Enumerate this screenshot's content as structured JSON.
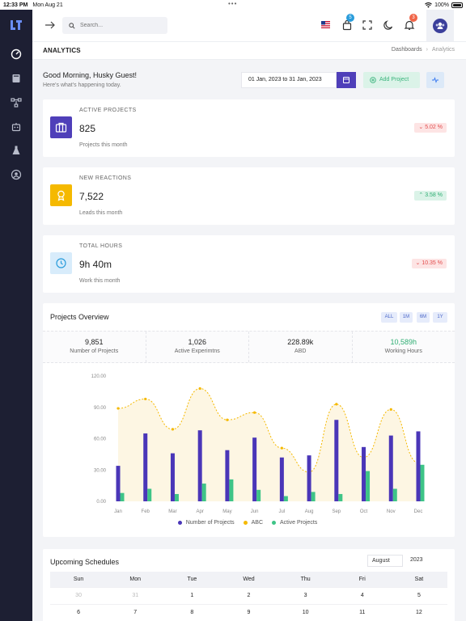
{
  "status_bar": {
    "time": "12:33 PM",
    "date": "Mon Aug 21",
    "battery": "100%"
  },
  "topbar": {
    "search_placeholder": "Search...",
    "cart_badge": "5",
    "notification_badge": "3"
  },
  "page_header": {
    "title": "ANALYTICS",
    "breadcrumb": [
      "Dashboards",
      "Analytics"
    ]
  },
  "greeting": {
    "title": "Good Morning, Husky Guest!",
    "subtitle": "Here's what's happening today.",
    "date_range": "01 Jan, 2023 to 31 Jan, 2023",
    "add_project_label": "Add Project"
  },
  "stats": [
    {
      "label": "ACTIVE PROJECTS",
      "value": "825",
      "sub": "Projects this month",
      "change": "5.02 %",
      "trend": "down",
      "color": "#4f3fb9"
    },
    {
      "label": "NEW REACTIONS",
      "value": "7,522",
      "sub": "Leads this month",
      "change": "3.58 %",
      "trend": "up",
      "color": "#f5b900"
    },
    {
      "label": "TOTAL HOURS",
      "value": "9h 40m",
      "sub": "Work this month",
      "change": "10.35 %",
      "trend": "down",
      "color": "#d8ecfb"
    }
  ],
  "overview": {
    "title": "Projects Overview",
    "ranges": [
      "ALL",
      "1M",
      "6M",
      "1Y"
    ],
    "summary": [
      {
        "value": "9,851",
        "label": "Number of Projects"
      },
      {
        "value": "1,026",
        "label": "Active Experimtns"
      },
      {
        "value": "228.89k",
        "label": "ABD"
      },
      {
        "value": "10,589h",
        "label": "Working Hours"
      }
    ]
  },
  "chart_data": {
    "type": "bar",
    "categories": [
      "Jan",
      "Feb",
      "Mar",
      "Apr",
      "May",
      "Jun",
      "Jul",
      "Aug",
      "Sep",
      "Oct",
      "Nov",
      "Dec"
    ],
    "ylim": [
      0,
      120
    ],
    "yticks": [
      "0.00",
      "30.00",
      "60.00",
      "90.00",
      "120.00"
    ],
    "grid": false,
    "legend_position": "bottom",
    "series": [
      {
        "name": "Number of Projects",
        "type": "bar",
        "color": "#4a36b8",
        "values": [
          34,
          65,
          46,
          68,
          49,
          61,
          42,
          44,
          78,
          52,
          63,
          67
        ]
      },
      {
        "name": "ABC",
        "type": "area",
        "color": "#f5b900",
        "values": [
          89,
          98,
          69,
          108,
          78,
          85,
          51,
          28,
          93,
          42,
          88,
          37
        ]
      },
      {
        "name": "Active Projects",
        "type": "bar",
        "color": "#3ec487",
        "values": [
          8,
          12,
          7,
          17,
          21,
          11,
          5,
          9,
          7,
          29,
          12,
          35
        ]
      }
    ]
  },
  "schedules": {
    "title": "Upcoming Schedules",
    "month": "August",
    "year": "2023",
    "weekdays": [
      "Sun",
      "Mon",
      "Tue",
      "Wed",
      "Thu",
      "Fri",
      "Sat"
    ],
    "weeks": [
      [
        "30",
        "31",
        "1",
        "2",
        "3",
        "4",
        "5"
      ],
      [
        "6",
        "7",
        "8",
        "9",
        "10",
        "11",
        "12"
      ]
    ]
  }
}
